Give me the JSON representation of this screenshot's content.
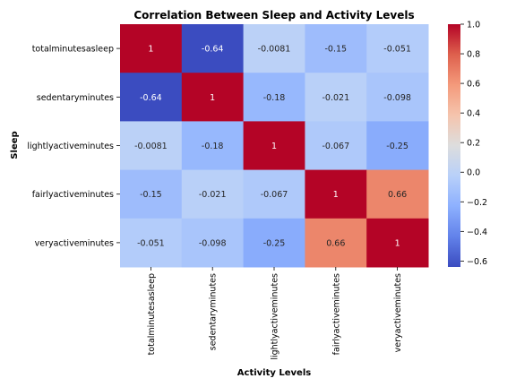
{
  "chart_data": {
    "type": "heatmap",
    "title": "Correlation Between Sleep and Activity Levels",
    "xlabel": "Activity Levels",
    "ylabel": "Sleep",
    "rows": [
      "totalminutesasleep",
      "sedentaryminutes",
      "lightlyactiveminutes",
      "fairlyactiveminutes",
      "veryactiveminutes"
    ],
    "columns": [
      "totalminutesasleep",
      "sedentaryminutes",
      "lightlyactiveminutes",
      "fairlyactiveminutes",
      "veryactiveminutes"
    ],
    "values": [
      [
        1,
        -0.64,
        -0.0081,
        -0.15,
        -0.051
      ],
      [
        -0.64,
        1,
        -0.18,
        -0.021,
        -0.098
      ],
      [
        -0.0081,
        -0.18,
        1,
        -0.067,
        -0.25
      ],
      [
        -0.15,
        -0.021,
        -0.067,
        1,
        0.66
      ],
      [
        -0.051,
        -0.098,
        -0.25,
        0.66,
        1
      ]
    ],
    "colormap": "coolwarm",
    "vmin": -0.64,
    "vmax": 1,
    "colorbar_ticks": [
      "1.0",
      "0.8",
      "0.6",
      "0.4",
      "0.2",
      "0.0",
      "−0.2",
      "−0.4",
      "−0.6"
    ],
    "annotations": true
  }
}
